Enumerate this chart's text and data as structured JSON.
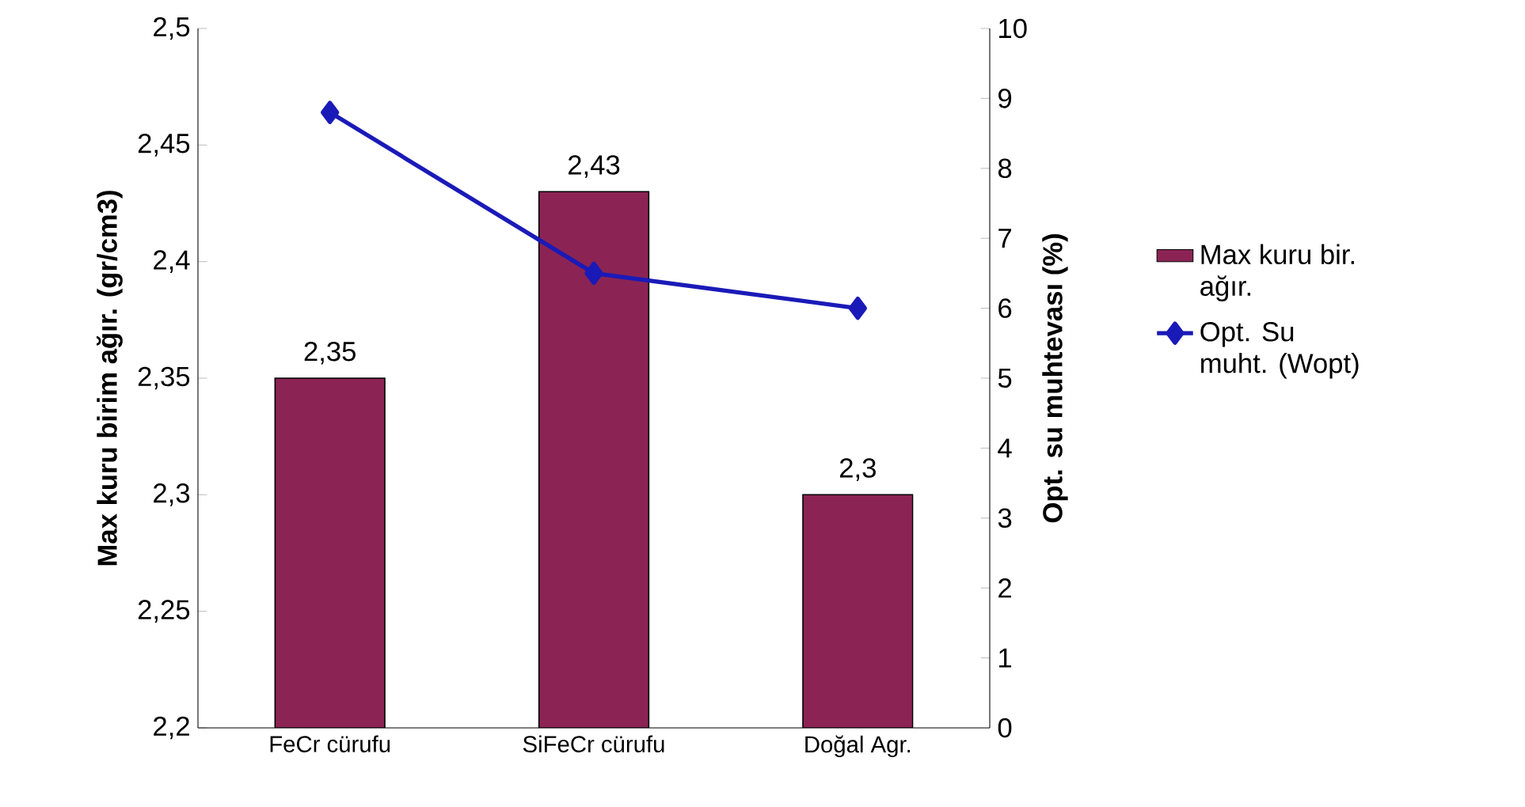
{
  "chart_data": {
    "type": "bar",
    "ylabel": "Max kuru birim ağır. (gr/cm3)",
    "y2label": "Opt. su muhtevası (%)",
    "categories": [
      "FeCr cürufu",
      "SiFeCr cürufu",
      "Doğal Agr."
    ],
    "series": [
      {
        "name": "Max kuru bir. ağır.",
        "color": "#8b2454",
        "values": [
          2.35,
          2.43,
          2.3
        ],
        "value_labels": [
          "2,35",
          "2,43",
          "2,3"
        ]
      },
      {
        "name": "Opt. Su muht. (Wopt)",
        "type": "line",
        "axis": "y2",
        "color": "#1a1ab8",
        "marker": "diamond",
        "values": [
          8.8,
          6.5,
          6.0
        ]
      }
    ],
    "ylim": [
      2.2,
      2.5
    ],
    "yticks": [
      {
        "value": 2.2,
        "label": "2,2"
      },
      {
        "value": 2.25,
        "label": "2,25"
      },
      {
        "value": 2.3,
        "label": "2,3"
      },
      {
        "value": 2.35,
        "label": "2,35"
      },
      {
        "value": 2.4,
        "label": "2,4"
      },
      {
        "value": 2.45,
        "label": "2,45"
      },
      {
        "value": 2.5,
        "label": "2,5"
      }
    ],
    "y2lim": [
      0,
      10
    ],
    "y2ticks": [
      0,
      1,
      2,
      3,
      4,
      5,
      6,
      7,
      8,
      9,
      10
    ],
    "grid": false,
    "legend": "right"
  }
}
